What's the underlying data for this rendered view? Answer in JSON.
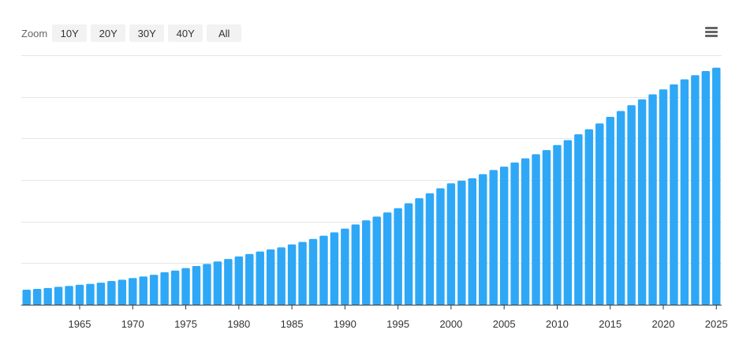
{
  "toolbar": {
    "zoom_label": "Zoom",
    "buttons": [
      "10Y",
      "20Y",
      "30Y",
      "40Y",
      "All"
    ],
    "menu_icon": "hamburger-menu-icon"
  },
  "colors": {
    "bar": "#2ea8f6",
    "grid": "#e6e6e6",
    "axis": "#333333"
  },
  "chart_data": {
    "type": "bar",
    "x": [
      1960,
      1961,
      1962,
      1963,
      1964,
      1965,
      1966,
      1967,
      1968,
      1969,
      1970,
      1971,
      1972,
      1973,
      1974,
      1975,
      1976,
      1977,
      1978,
      1979,
      1980,
      1981,
      1982,
      1983,
      1984,
      1985,
      1986,
      1987,
      1988,
      1989,
      1990,
      1991,
      1992,
      1993,
      1994,
      1995,
      1996,
      1997,
      1998,
      1999,
      2000,
      2001,
      2002,
      2003,
      2004,
      2005,
      2006,
      2007,
      2008,
      2009,
      2010,
      2011,
      2012,
      2013,
      2014,
      2015,
      2016,
      2017,
      2018,
      2019,
      2020,
      2021,
      2022,
      2023,
      2024,
      2025
    ],
    "values": [
      0.36,
      0.38,
      0.4,
      0.43,
      0.45,
      0.48,
      0.5,
      0.53,
      0.57,
      0.6,
      0.64,
      0.68,
      0.72,
      0.78,
      0.82,
      0.88,
      0.93,
      0.98,
      1.04,
      1.1,
      1.16,
      1.22,
      1.28,
      1.33,
      1.38,
      1.45,
      1.51,
      1.58,
      1.66,
      1.74,
      1.83,
      1.93,
      2.03,
      2.12,
      2.22,
      2.32,
      2.44,
      2.56,
      2.68,
      2.8,
      2.92,
      2.98,
      3.04,
      3.14,
      3.24,
      3.32,
      3.42,
      3.52,
      3.62,
      3.72,
      3.84,
      3.96,
      4.1,
      4.22,
      4.36,
      4.52,
      4.66,
      4.8,
      4.94,
      5.06,
      5.18,
      5.3,
      5.42,
      5.52,
      5.62,
      5.7
    ],
    "x_ticks": [
      "1965",
      "1970",
      "1975",
      "1980",
      "1985",
      "1990",
      "1995",
      "2000",
      "2005",
      "2010",
      "2015",
      "2020",
      "2025"
    ],
    "ylim": [
      0,
      6
    ],
    "grid": true,
    "legend": "none",
    "title": "",
    "xlabel": "",
    "ylabel": ""
  }
}
